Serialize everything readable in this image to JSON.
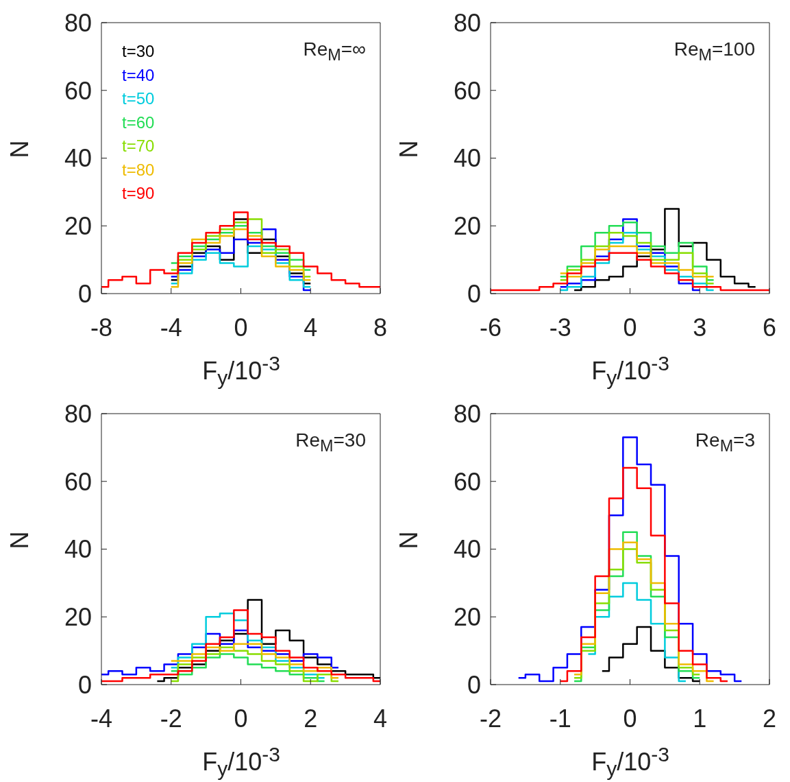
{
  "chart_data": [
    {
      "type": "step",
      "xlabel": "F$_{y}$/10$^{-3}$",
      "ylabel": "N",
      "annotations": [
        "Re$_{M}$=∞"
      ],
      "legend": "top left",
      "xlim": [
        -8,
        8
      ],
      "xticks": [
        -8,
        -4,
        0,
        4,
        8
      ],
      "ylim": [
        0,
        80
      ],
      "yticks": [
        0,
        20,
        40,
        60,
        80
      ],
      "x": [
        -8,
        -7.2,
        -6.4,
        -5.6,
        -4.8,
        -4,
        -3.2,
        -2.4,
        -1.6,
        -0.8,
        0,
        0.8,
        1.6,
        2.4,
        3.2,
        4,
        4.8,
        5.6,
        6.4,
        7.2,
        8
      ],
      "series": [
        {
          "name": "t=30",
          "color": "#000000",
          "values": [
            null,
            null,
            null,
            null,
            null,
            4,
            8,
            12,
            14,
            10,
            22,
            12,
            16,
            11,
            6,
            3,
            null,
            null,
            null,
            null,
            null
          ]
        },
        {
          "name": "t=40",
          "color": "#0000ff",
          "values": [
            null,
            null,
            null,
            null,
            null,
            5,
            7,
            11,
            13,
            12,
            16,
            15,
            19,
            10,
            5,
            1,
            null,
            null,
            null,
            null,
            null
          ]
        },
        {
          "name": "t=50",
          "color": "#00ccdd",
          "values": [
            null,
            null,
            null,
            null,
            null,
            3,
            6,
            10,
            12,
            9,
            8,
            14,
            13,
            9,
            4,
            2,
            null,
            null,
            null,
            null,
            null
          ]
        },
        {
          "name": "t=60",
          "color": "#22dd55",
          "values": [
            null,
            null,
            null,
            null,
            null,
            9,
            11,
            14,
            16,
            18,
            20,
            18,
            14,
            12,
            10,
            7,
            null,
            null,
            null,
            null,
            null
          ]
        },
        {
          "name": "t=70",
          "color": "#88dd00",
          "values": [
            null,
            null,
            null,
            null,
            null,
            7,
            10,
            13,
            17,
            19,
            21,
            22,
            12,
            13,
            8,
            5,
            null,
            null,
            null,
            null,
            null
          ]
        },
        {
          "name": "t=80",
          "color": "#eebb00",
          "values": [
            null,
            null,
            null,
            null,
            null,
            2,
            9,
            16,
            15,
            17,
            19,
            17,
            11,
            8,
            7,
            4,
            null,
            null,
            null,
            null,
            null
          ]
        },
        {
          "name": "t=90",
          "color": "#ff0000",
          "values": [
            2,
            4,
            5,
            3,
            7,
            6,
            12,
            15,
            18,
            20,
            24,
            16,
            15,
            14,
            12,
            8,
            6,
            4,
            3,
            2,
            2
          ]
        }
      ]
    },
    {
      "type": "step",
      "xlabel": "F$_{y}$/10$^{-3}$",
      "ylabel": "N",
      "annotations": [
        "Re$_{M}$=100"
      ],
      "xlim": [
        -6,
        6
      ],
      "xticks": [
        -6,
        -3,
        0,
        3,
        6
      ],
      "ylim": [
        0,
        80
      ],
      "yticks": [
        0,
        20,
        40,
        60,
        80
      ],
      "x": [
        -6,
        -5.4,
        -4.8,
        -4.2,
        -3.6,
        -3,
        -2.4,
        -1.8,
        -1.2,
        -0.6,
        0,
        0.6,
        1.2,
        1.8,
        2.4,
        3,
        3.6,
        4.2,
        4.8,
        5.4,
        6
      ],
      "series": [
        {
          "color": "#000000",
          "values": [
            null,
            null,
            null,
            null,
            null,
            null,
            1,
            2,
            4,
            5,
            8,
            11,
            13,
            25,
            14,
            15,
            10,
            5,
            3,
            2,
            null
          ]
        },
        {
          "color": "#0000ff",
          "values": [
            null,
            null,
            null,
            null,
            null,
            2,
            3,
            4,
            11,
            16,
            22,
            14,
            12,
            8,
            3,
            1,
            null,
            null,
            null,
            null,
            null
          ]
        },
        {
          "color": "#00ccdd",
          "values": [
            null,
            null,
            null,
            null,
            null,
            1,
            2,
            5,
            9,
            15,
            18,
            13,
            11,
            7,
            5,
            3,
            1,
            null,
            null,
            null,
            null
          ]
        },
        {
          "color": "#22dd55",
          "values": [
            null,
            null,
            null,
            null,
            null,
            5,
            8,
            14,
            18,
            20,
            21,
            18,
            14,
            12,
            15,
            8,
            4,
            null,
            null,
            null,
            null
          ]
        },
        {
          "color": "#88dd00",
          "values": [
            null,
            null,
            null,
            null,
            null,
            4,
            7,
            10,
            14,
            18,
            17,
            15,
            10,
            10,
            12,
            6,
            3,
            null,
            null,
            null,
            null
          ]
        },
        {
          "color": "#eebb00",
          "values": [
            null,
            null,
            null,
            null,
            null,
            6,
            5,
            9,
            13,
            14,
            14,
            12,
            9,
            9,
            7,
            5,
            5,
            null,
            null,
            null,
            null
          ]
        },
        {
          "color": "#ff0000",
          "values": [
            1,
            1,
            1,
            1,
            2,
            3,
            6,
            8,
            10,
            12,
            12,
            10,
            8,
            6,
            4,
            2,
            2,
            1,
            1,
            1,
            1
          ]
        }
      ]
    },
    {
      "type": "step",
      "xlabel": "F$_{y}$/10$^{-3}$",
      "ylabel": "N",
      "annotations": [
        "Re$_{M}$=30"
      ],
      "xlim": [
        -4,
        4
      ],
      "xticks": [
        -4,
        -2,
        0,
        2,
        4
      ],
      "ylim": [
        0,
        80
      ],
      "yticks": [
        0,
        20,
        40,
        60,
        80
      ],
      "x": [
        -4,
        -3.6,
        -3.2,
        -2.8,
        -2.4,
        -2,
        -1.6,
        -1.2,
        -0.8,
        -0.4,
        0,
        0.4,
        0.8,
        1.2,
        1.6,
        2,
        2.4,
        2.8,
        3.2,
        3.6,
        4
      ],
      "series": [
        {
          "color": "#000000",
          "values": [
            null,
            null,
            null,
            null,
            1,
            2,
            5,
            6,
            10,
            13,
            15,
            25,
            12,
            16,
            13,
            8,
            6,
            4,
            3,
            3,
            2
          ]
        },
        {
          "color": "#0000ff",
          "values": [
            3,
            4,
            3,
            5,
            4,
            6,
            9,
            11,
            15,
            12,
            16,
            11,
            10,
            9,
            7,
            9,
            8,
            5,
            null,
            null,
            null
          ]
        },
        {
          "color": "#00ccdd",
          "values": [
            null,
            null,
            null,
            null,
            null,
            5,
            8,
            12,
            20,
            21,
            19,
            13,
            11,
            7,
            5,
            3,
            2,
            null,
            null,
            null,
            null
          ]
        },
        {
          "color": "#22dd55",
          "values": [
            null,
            null,
            null,
            null,
            null,
            4,
            3,
            5,
            8,
            9,
            8,
            6,
            5,
            4,
            3,
            2,
            1,
            null,
            null,
            null,
            null
          ]
        },
        {
          "color": "#88dd00",
          "values": [
            null,
            null,
            null,
            null,
            null,
            1,
            6,
            8,
            9,
            11,
            10,
            9,
            7,
            6,
            4,
            1,
            3,
            1,
            null,
            null,
            null
          ]
        },
        {
          "color": "#eebb00",
          "values": [
            null,
            null,
            null,
            null,
            null,
            7,
            7,
            9,
            11,
            10,
            12,
            12,
            9,
            8,
            6,
            4,
            5,
            2,
            null,
            null,
            null
          ]
        },
        {
          "color": "#ff0000",
          "values": [
            1,
            1,
            2,
            2,
            3,
            3,
            4,
            7,
            12,
            14,
            22,
            15,
            14,
            10,
            8,
            5,
            4,
            3,
            2,
            2,
            1
          ]
        }
      ]
    },
    {
      "type": "step",
      "xlabel": "F$_{y}$/10$^{-3}$",
      "ylabel": "N",
      "annotations": [
        "Re$_{M}$=3"
      ],
      "xlim": [
        -2,
        2
      ],
      "xticks": [
        -2,
        -1,
        0,
        1,
        2
      ],
      "ylim": [
        0,
        80
      ],
      "yticks": [
        0,
        20,
        40,
        60,
        80
      ],
      "x": [
        -1.6,
        -1.4,
        -1.2,
        -1,
        -0.8,
        -0.6,
        -0.4,
        -0.2,
        0,
        0.2,
        0.4,
        0.6,
        0.8,
        1,
        1.2,
        1.4,
        1.6
      ],
      "series": [
        {
          "color": "#000000",
          "values": [
            null,
            null,
            null,
            null,
            null,
            null,
            4,
            8,
            12,
            17,
            10,
            5,
            2,
            1,
            null,
            null,
            null
          ]
        },
        {
          "color": "#0000ff",
          "values": [
            2,
            3,
            1,
            5,
            9,
            17,
            28,
            50,
            73,
            65,
            59,
            38,
            18,
            9,
            4,
            3,
            1
          ]
        },
        {
          "color": "#00ccdd",
          "values": [
            null,
            null,
            null,
            null,
            null,
            9,
            20,
            26,
            30,
            25,
            18,
            8,
            1,
            null,
            null,
            null,
            null
          ]
        },
        {
          "color": "#22dd55",
          "values": [
            null,
            null,
            null,
            null,
            1,
            11,
            22,
            32,
            45,
            38,
            26,
            14,
            4,
            2,
            null,
            null,
            null
          ]
        },
        {
          "color": "#88dd00",
          "values": [
            null,
            null,
            null,
            null,
            2,
            10,
            24,
            34,
            40,
            36,
            28,
            16,
            5,
            3,
            null,
            null,
            null
          ]
        },
        {
          "color": "#eebb00",
          "values": [
            null,
            null,
            null,
            null,
            3,
            12,
            27,
            40,
            42,
            37,
            30,
            18,
            6,
            4,
            1,
            null,
            null
          ]
        },
        {
          "color": "#ff0000",
          "values": [
            null,
            null,
            null,
            1,
            4,
            14,
            32,
            55,
            64,
            58,
            44,
            24,
            10,
            6,
            2,
            1,
            null
          ]
        }
      ]
    }
  ]
}
